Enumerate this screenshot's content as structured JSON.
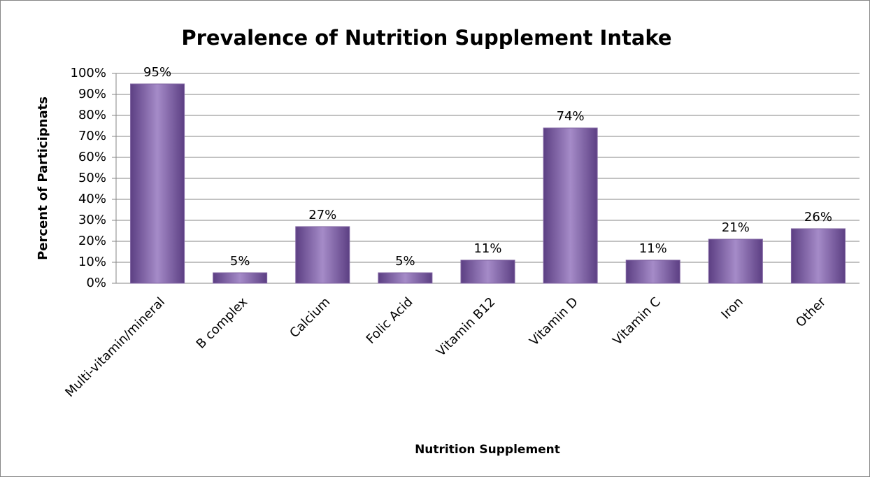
{
  "chart_data": {
    "type": "bar",
    "title": "Prevalence of Nutrition Supplement Intake",
    "xlabel": "Nutrition Supplement",
    "ylabel": "Percent of Participnats",
    "categories": [
      "Multi-vitamin/mineral",
      "B complex",
      "Calcium",
      "Folic Acid",
      "Vitamin B12",
      "Vitamin D",
      "Vitamin C",
      "Iron",
      "Other"
    ],
    "values": [
      95,
      5,
      27,
      5,
      11,
      74,
      11,
      21,
      26
    ],
    "value_labels": [
      "95%",
      "5%",
      "27%",
      "5%",
      "11%",
      "74%",
      "11%",
      "21%",
      "26%"
    ],
    "color": "#8064a2",
    "ylim": [
      0,
      100
    ],
    "yticks": [
      {
        "value": 0,
        "label": "0%"
      },
      {
        "value": 10,
        "label": "10%"
      },
      {
        "value": 20,
        "label": "20%"
      },
      {
        "value": 30,
        "label": "30%"
      },
      {
        "value": 40,
        "label": "40%"
      },
      {
        "value": 50,
        "label": "50%"
      },
      {
        "value": 60,
        "label": "60%"
      },
      {
        "value": 70,
        "label": "70%"
      },
      {
        "value": 80,
        "label": "80%"
      },
      {
        "value": 90,
        "label": "90%"
      },
      {
        "value": 100,
        "label": "100%"
      }
    ],
    "grid": true
  }
}
